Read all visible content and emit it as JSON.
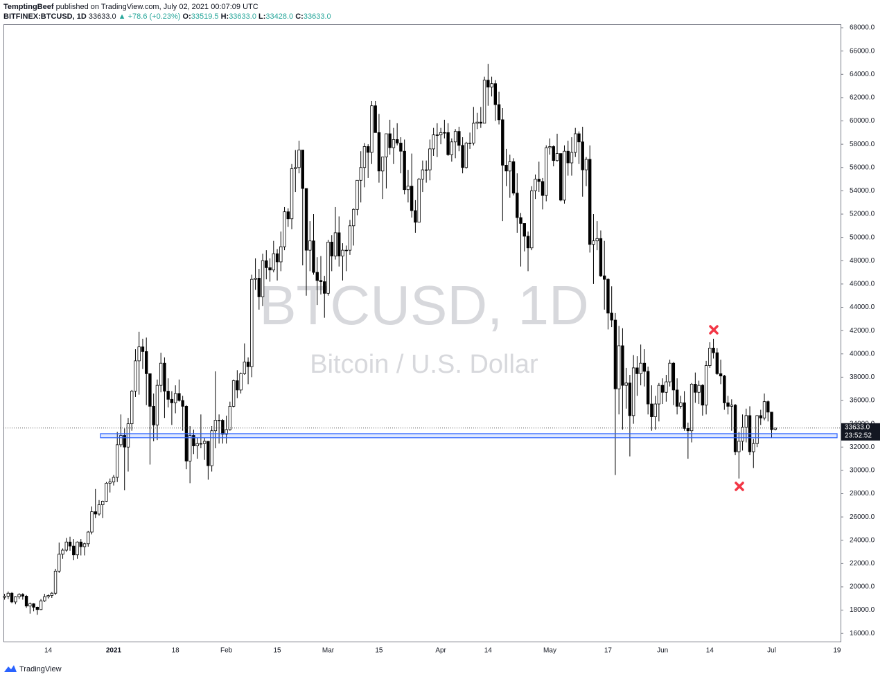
{
  "header": {
    "author": "TemptingBeef",
    "published": "published on TradingView.com, July 02, 2021 00:07:09 UTC",
    "symbol": "BITFINEX:BTCUSD, 1D",
    "last": "33633.0",
    "change": "▲ +78.6 (+0.23%)",
    "ohlc": [
      {
        "label": "O:",
        "value": "33519.5"
      },
      {
        "label": "H:",
        "value": "33633.0"
      },
      {
        "label": "L:",
        "value": "33428.0"
      },
      {
        "label": "C:",
        "value": "33633.0"
      }
    ]
  },
  "footer": {
    "brand": "TradingView"
  },
  "chart_data": {
    "type": "candlestick",
    "title": "BTCUSD, 1D",
    "subtitle": "Bitcoin / U.S. Dollar",
    "categories": [
      null,
      null,
      null,
      null,
      null,
      null,
      null,
      null,
      null,
      null,
      null,
      null,
      "14",
      null,
      null,
      null,
      null,
      null,
      null,
      null,
      null,
      null,
      null,
      null,
      null,
      null,
      null,
      null,
      null,
      null,
      "2021",
      null,
      null,
      null,
      null,
      null,
      null,
      null,
      null,
      null,
      null,
      null,
      null,
      null,
      null,
      null,
      null,
      "18",
      null,
      null,
      null,
      null,
      null,
      null,
      null,
      null,
      null,
      null,
      null,
      null,
      null,
      "Feb",
      null,
      null,
      null,
      null,
      null,
      null,
      null,
      null,
      null,
      null,
      null,
      null,
      null,
      "15",
      null,
      null,
      null,
      null,
      null,
      null,
      null,
      null,
      null,
      null,
      null,
      null,
      null,
      "Mar",
      null,
      null,
      null,
      null,
      null,
      null,
      null,
      null,
      null,
      null,
      null,
      null,
      null,
      "15",
      null,
      null,
      null,
      null,
      null,
      null,
      null,
      null,
      null,
      null,
      null,
      null,
      null,
      null,
      null,
      null,
      "Apr",
      null,
      null,
      null,
      null,
      null,
      null,
      null,
      null,
      null,
      null,
      null,
      null,
      "14",
      null,
      null,
      null,
      null,
      null,
      null,
      null,
      null,
      null,
      null,
      null,
      null,
      null,
      null,
      null,
      null,
      "May",
      null,
      null,
      null,
      null,
      null,
      null,
      null,
      null,
      null,
      null,
      null,
      null,
      null,
      null,
      null,
      "17",
      null,
      null,
      null,
      null,
      null,
      null,
      null,
      null,
      null,
      null,
      null,
      null,
      null,
      null,
      "Jun",
      null,
      null,
      null,
      null,
      null,
      null,
      null,
      null,
      null,
      null,
      null,
      null,
      "14",
      null,
      null,
      null,
      null,
      null,
      null,
      null,
      null,
      null,
      null,
      null,
      null,
      null,
      null,
      null,
      null,
      "Jul",
      null,
      null,
      null,
      null,
      null,
      null,
      null,
      null,
      null,
      null,
      null,
      null,
      null,
      null,
      null,
      null,
      null,
      "19"
    ],
    "open": [
      19100,
      19200,
      19450,
      18700,
      19150,
      19350,
      19200,
      18350,
      18550,
      18250,
      18050,
      18800,
      19150,
      19250,
      19450,
      21350,
      22800,
      23150,
      23850,
      23500,
      22750,
      23850,
      23450,
      23700,
      24700,
      26450,
      26250,
      27050,
      27350,
      28900,
      29000,
      29400,
      32200,
      33000,
      32000,
      34000,
      36800,
      39400,
      40600,
      40200,
      38300,
      35500,
      33900,
      37300,
      39200,
      36800,
      36100,
      35800,
      36600,
      36000,
      35500,
      30800,
      33000,
      32100,
      32300,
      32300,
      32500,
      30400,
      33400,
      34300,
      34300,
      33100,
      33500,
      35500,
      37700,
      36900,
      38300,
      39300,
      38900,
      46400,
      46500,
      44900,
      48000,
      47400,
      47200,
      48600,
      47900,
      49200,
      52200,
      51600,
      55900,
      56000,
      57500,
      54200,
      48900,
      49700,
      47000,
      46300,
      46200,
      45200,
      49600,
      48400,
      50400,
      48400,
      48900,
      48900,
      51000,
      52400,
      54900,
      56000,
      57800,
      57300,
      61300,
      59000,
      55700,
      56900,
      58900,
      57700,
      58400,
      58100,
      57400,
      54100,
      54400,
      52300,
      51300,
      55000,
      55800,
      55800,
      57600,
      58800,
      58800,
      59000,
      59000,
      57100,
      58200,
      59100,
      57900,
      56000,
      58100,
      58100,
      59800,
      59900,
      59800,
      63500,
      62900,
      63200,
      61400,
      60100,
      56200,
      55700,
      56500,
      53800,
      51700,
      51200,
      50100,
      49100,
      54000,
      55000,
      54800,
      53600,
      57700,
      57800,
      56600,
      57200,
      53200,
      57400,
      56400,
      57300,
      58900,
      58200,
      55800,
      56700,
      49400,
      49700,
      49900,
      46700,
      46400,
      43500,
      42900,
      37000,
      40700,
      37300,
      37500,
      34700,
      38800,
      38300,
      39200,
      38500,
      35700,
      34600,
      35700,
      37300,
      36700,
      37600,
      39200,
      36900,
      35500,
      35800,
      33600,
      33400,
      37400,
      36700,
      37300,
      35600,
      39000,
      40500,
      40100,
      38300,
      38100,
      35800,
      35500,
      35600,
      31600,
      32500,
      33700,
      34700,
      31600,
      32300,
      34700,
      34500,
      35900,
      35000,
      33519.5,
      null,
      null,
      null,
      null,
      null,
      null,
      null,
      null,
      null,
      null,
      null,
      null,
      null,
      null,
      null,
      null,
      null
    ],
    "high": [
      19400,
      19600,
      19550,
      19200,
      19450,
      19450,
      19300,
      18650,
      18600,
      18300,
      18950,
      19400,
      19350,
      19550,
      21550,
      23800,
      23300,
      24200,
      24300,
      24100,
      23900,
      24100,
      23800,
      24800,
      26900,
      28400,
      27450,
      27400,
      29000,
      29300,
      29600,
      33300,
      34800,
      33600,
      34500,
      36900,
      40400,
      41900,
      41300,
      41400,
      38300,
      36600,
      37800,
      40100,
      39700,
      37900,
      36800,
      37300,
      37800,
      36400,
      35600,
      33800,
      33500,
      32800,
      34800,
      32800,
      32500,
      33800,
      38500,
      34800,
      34400,
      34700,
      35900,
      37800,
      38600,
      38400,
      40900,
      39700,
      46800,
      48200,
      47300,
      48600,
      48900,
      48200,
      49700,
      49000,
      50500,
      52600,
      52500,
      56300,
      57500,
      58300,
      57500,
      54200,
      51400,
      52000,
      48300,
      48400,
      46700,
      49800,
      50200,
      52600,
      51800,
      49500,
      49300,
      51500,
      52500,
      54900,
      57400,
      58100,
      58000,
      61700,
      61700,
      60600,
      56900,
      58900,
      60100,
      59400,
      59800,
      58600,
      58400,
      55800,
      57200,
      53200,
      55100,
      56600,
      56600,
      58400,
      59400,
      59800,
      59400,
      60100,
      59800,
      58500,
      59300,
      59500,
      58600,
      58200,
      59000,
      61200,
      60700,
      61200,
      63800,
      64900,
      63800,
      63500,
      62500,
      61100,
      57600,
      57100,
      56800,
      55500,
      52100,
      51200,
      50500,
      54400,
      55400,
      56500,
      55100,
      57900,
      58500,
      57900,
      58900,
      57200,
      57900,
      58300,
      58600,
      59400,
      59100,
      59500,
      56900,
      57900,
      52000,
      51400,
      50600,
      49700,
      46500,
      45800,
      43500,
      42400,
      42200,
      38800,
      38200,
      39900,
      39800,
      40800,
      40400,
      38900,
      37300,
      36400,
      37500,
      37900,
      38200,
      39500,
      39300,
      37900,
      36400,
      36800,
      34100,
      37500,
      38400,
      37700,
      37400,
      39400,
      41000,
      41300,
      40500,
      39500,
      38200,
      36400,
      36100,
      35700,
      33300,
      34800,
      35300,
      35500,
      32700,
      34700,
      35200,
      36600,
      36000,
      35000,
      33633,
      null,
      null,
      null,
      null,
      null,
      null,
      null,
      null,
      null,
      null,
      null,
      null,
      null,
      null,
      null,
      null,
      null
    ],
    "low": [
      18900,
      18950,
      18600,
      18500,
      18950,
      18900,
      18200,
      17700,
      17900,
      17600,
      18000,
      18700,
      19000,
      19050,
      19300,
      21200,
      22400,
      23000,
      23100,
      22300,
      22400,
      22700,
      22700,
      23450,
      24500,
      25900,
      26100,
      25900,
      27300,
      28100,
      28700,
      29000,
      32000,
      28300,
      29900,
      33400,
      36300,
      36500,
      38700,
      35600,
      30500,
      32500,
      32600,
      36700,
      34500,
      35400,
      33900,
      34900,
      35900,
      33400,
      30100,
      28900,
      31400,
      31000,
      31900,
      30900,
      29200,
      29900,
      31900,
      32300,
      32300,
      32300,
      33400,
      35400,
      36200,
      36600,
      38200,
      37400,
      38000,
      45500,
      43800,
      44100,
      46400,
      46200,
      47000,
      46300,
      47100,
      48900,
      50900,
      50700,
      53900,
      55500,
      47600,
      45000,
      47100,
      46800,
      44200,
      45100,
      43100,
      45000,
      47100,
      48100,
      47500,
      46300,
      47100,
      48500,
      49300,
      51900,
      53000,
      54300,
      55100,
      56300,
      59000,
      54700,
      53300,
      54200,
      57100,
      56300,
      57900,
      55500,
      53700,
      53000,
      51700,
      50400,
      51300,
      53900,
      54700,
      54900,
      57000,
      56900,
      58000,
      58500,
      57000,
      56500,
      56800,
      57400,
      55500,
      55900,
      57600,
      57900,
      59300,
      59400,
      59800,
      61300,
      62100,
      60000,
      59700,
      51400,
      54400,
      53400,
      53600,
      50400,
      47500,
      48800,
      47100,
      48900,
      53300,
      53900,
      52400,
      53100,
      57100,
      56100,
      56500,
      53100,
      52900,
      55300,
      55300,
      56900,
      56300,
      53500,
      54400,
      48700,
      46000,
      48900,
      46600,
      43800,
      42100,
      42300,
      29600,
      34800,
      33500,
      35300,
      31200,
      34000,
      36400,
      37300,
      37200,
      34800,
      33400,
      33500,
      34200,
      35700,
      35900,
      37200,
      35600,
      34800,
      35300,
      33400,
      31000,
      32400,
      35800,
      35700,
      34700,
      34800,
      38800,
      39600,
      38200,
      37400,
      35200,
      34800,
      33400,
      31300,
      29300,
      31700,
      32400,
      31300,
      30200,
      32000,
      33900,
      34300,
      34200,
      32800,
      33428,
      null,
      null,
      null,
      null,
      null,
      null,
      null,
      null,
      null,
      null,
      null,
      null,
      null,
      null,
      null,
      null,
      null
    ],
    "close": [
      19200,
      19450,
      18700,
      19150,
      19350,
      19200,
      18350,
      18550,
      18250,
      18050,
      18800,
      19150,
      19250,
      19450,
      21350,
      22800,
      23150,
      23850,
      23500,
      22750,
      23850,
      23450,
      23700,
      24700,
      26450,
      26250,
      27050,
      27350,
      28900,
      29000,
      29400,
      32200,
      33000,
      32000,
      34000,
      36800,
      39400,
      40600,
      40200,
      38300,
      35500,
      33900,
      37300,
      39200,
      36800,
      36100,
      35800,
      36600,
      36000,
      35500,
      30800,
      33000,
      32100,
      32300,
      32300,
      32500,
      30400,
      33400,
      34300,
      34300,
      33100,
      33500,
      35500,
      37700,
      36900,
      38300,
      39300,
      38900,
      46400,
      46500,
      44900,
      48000,
      47400,
      47200,
      48600,
      47900,
      49200,
      52200,
      51600,
      55900,
      56000,
      57500,
      54200,
      48900,
      49700,
      47000,
      46300,
      46200,
      45200,
      49600,
      48400,
      50400,
      48400,
      48900,
      48900,
      51000,
      52400,
      54900,
      56000,
      57800,
      57300,
      61300,
      59000,
      55700,
      56900,
      58900,
      57700,
      58400,
      58100,
      57400,
      54100,
      54400,
      52300,
      51300,
      55000,
      55800,
      55800,
      57600,
      58800,
      58800,
      59000,
      59000,
      57100,
      58200,
      59100,
      57900,
      56000,
      58100,
      58100,
      59800,
      59900,
      59800,
      63500,
      62900,
      63200,
      61400,
      60100,
      56200,
      55700,
      56500,
      53800,
      51700,
      51200,
      50100,
      49100,
      54000,
      55000,
      54800,
      53600,
      57700,
      57800,
      56600,
      57200,
      53200,
      57400,
      56400,
      57300,
      58900,
      58200,
      55800,
      56700,
      49400,
      49700,
      49900,
      46700,
      46400,
      43500,
      42900,
      37000,
      40700,
      37300,
      37500,
      34700,
      38800,
      38300,
      39200,
      38500,
      35700,
      34600,
      35700,
      37300,
      36700,
      37600,
      39200,
      36900,
      35500,
      35800,
      33600,
      33400,
      37400,
      36700,
      37300,
      35600,
      39000,
      40500,
      40100,
      38300,
      38100,
      35800,
      35500,
      35600,
      31600,
      32500,
      33700,
      34700,
      31600,
      32300,
      34700,
      34500,
      35900,
      35000,
      33500,
      33633,
      null,
      null,
      null,
      null,
      null,
      null,
      null,
      null,
      null,
      null,
      null,
      null,
      null,
      null,
      null,
      null,
      null
    ],
    "up_color": "#ffffff",
    "down_color": "#000000",
    "wick_color": "#000000",
    "ylim": [
      15300,
      68240
    ],
    "yticks": [
      {
        "value": 16000,
        "label": "16000.0"
      },
      {
        "value": 18000,
        "label": "18000.0"
      },
      {
        "value": 20000,
        "label": "20000.0"
      },
      {
        "value": 22000,
        "label": "22000.0"
      },
      {
        "value": 24000,
        "label": "24000.0"
      },
      {
        "value": 26000,
        "label": "26000.0"
      },
      {
        "value": 28000,
        "label": "28000.0"
      },
      {
        "value": 30000,
        "label": "30000.0"
      },
      {
        "value": 32000,
        "label": "32000.0"
      },
      {
        "value": 34000,
        "label": "34000.0"
      },
      {
        "value": 36000,
        "label": "36000.0"
      },
      {
        "value": 38000,
        "label": "38000.0"
      },
      {
        "value": 40000,
        "label": "40000.0"
      },
      {
        "value": 42000,
        "label": "42000.0"
      },
      {
        "value": 44000,
        "label": "44000.0"
      },
      {
        "value": 46000,
        "label": "46000.0"
      },
      {
        "value": 48000,
        "label": "48000.0"
      },
      {
        "value": 50000,
        "label": "50000.0"
      },
      {
        "value": 52000,
        "label": "52000.0"
      },
      {
        "value": 54000,
        "label": "54000.0"
      },
      {
        "value": 56000,
        "label": "56000.0"
      },
      {
        "value": 58000,
        "label": "58000.0"
      },
      {
        "value": 60000,
        "label": "60000.0"
      },
      {
        "value": 62000,
        "label": "62000.0"
      },
      {
        "value": 64000,
        "label": "64000.0"
      },
      {
        "value": 66000,
        "label": "66000.0"
      },
      {
        "value": 68000,
        "label": "68000.0"
      }
    ],
    "price_label": {
      "price": "33633.0",
      "countdown": "23:52:52"
    },
    "support_zone": {
      "range": [
        32800,
        33150
      ],
      "color": "#2962ff"
    }
  }
}
